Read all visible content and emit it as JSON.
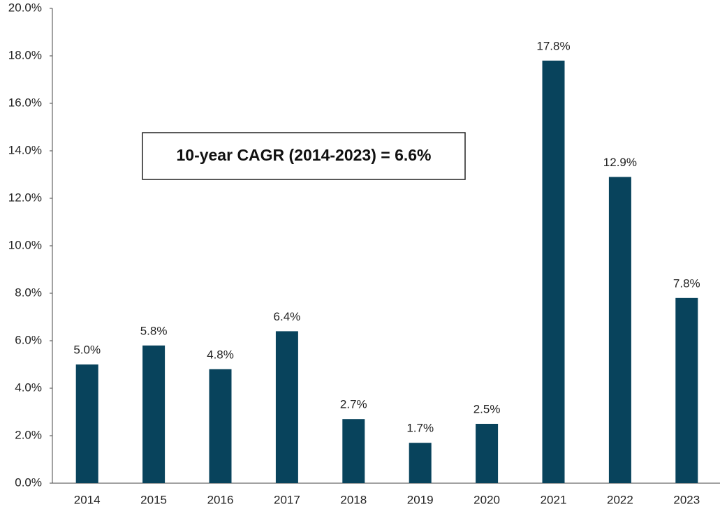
{
  "chart_data": {
    "type": "bar",
    "categories": [
      "2014",
      "2015",
      "2016",
      "2017",
      "2018",
      "2019",
      "2020",
      "2021",
      "2022",
      "2023"
    ],
    "values": [
      5.0,
      5.8,
      4.8,
      6.4,
      2.7,
      1.7,
      2.5,
      17.8,
      12.9,
      7.8
    ],
    "value_labels": [
      "5.0%",
      "5.8%",
      "4.8%",
      "6.4%",
      "2.7%",
      "1.7%",
      "2.5%",
      "17.8%",
      "12.9%",
      "7.8%"
    ],
    "color": "#08435c",
    "ylim": [
      0,
      20
    ],
    "yticks": [
      {
        "value": 0,
        "label": "0.0%"
      },
      {
        "value": 2,
        "label": "2.0%"
      },
      {
        "value": 4,
        "label": "4.0%"
      },
      {
        "value": 6,
        "label": "6.0%"
      },
      {
        "value": 8,
        "label": "8.0%"
      },
      {
        "value": 10,
        "label": "10.0%"
      },
      {
        "value": 12,
        "label": "12.0%"
      },
      {
        "value": 14,
        "label": "14.0%"
      },
      {
        "value": 16,
        "label": "16.0%"
      },
      {
        "value": 18,
        "label": "18.0%"
      },
      {
        "value": 20,
        "label": "20.0%"
      }
    ],
    "annotation": "10-year CAGR (2014-2023) = 6.6%"
  }
}
